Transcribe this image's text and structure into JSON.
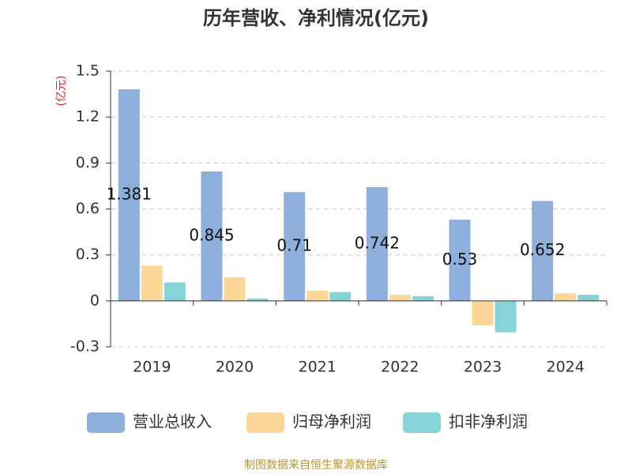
{
  "chart_data": {
    "type": "bar",
    "title": "历年营收、净利情况(亿元)",
    "y_label": "(亿元)",
    "source": "制图数据来自恒生聚源数据库",
    "categories": [
      "2019",
      "2020",
      "2021",
      "2022",
      "2023",
      "2024"
    ],
    "series": [
      {
        "name": "营业总收入",
        "color": "#8eaedb",
        "values": [
          1.381,
          0.845,
          0.71,
          0.742,
          0.53,
          0.652
        ],
        "show_labels": true
      },
      {
        "name": "归母净利润",
        "color": "#fdd797",
        "values": [
          0.23,
          0.155,
          0.067,
          0.04,
          -0.16,
          0.05
        ]
      },
      {
        "name": "扣非净利润",
        "color": "#86d4d8",
        "values": [
          0.12,
          0.015,
          0.057,
          0.03,
          -0.205,
          0.04
        ]
      }
    ],
    "ylim": [
      -0.3,
      1.5
    ],
    "yticks": [
      -0.3,
      0,
      0.3,
      0.6,
      0.9,
      1.2,
      1.5
    ],
    "grid": true
  }
}
